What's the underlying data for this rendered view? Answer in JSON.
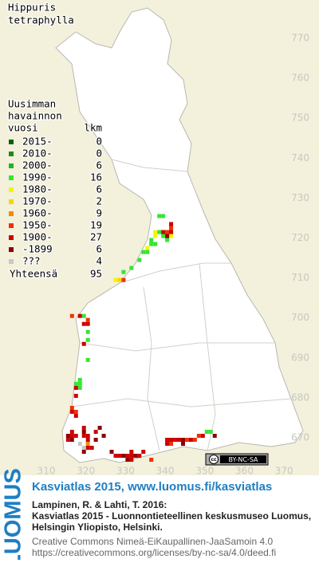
{
  "title": [
    "Hippuris",
    "tetraphylla"
  ],
  "legend": {
    "heading": [
      "Uusimman",
      "havainnon"
    ],
    "year_header": "vuosi",
    "count_header": "lkm",
    "entries": [
      {
        "label": "2015-",
        "count": 0,
        "color": "#006400",
        "squares": []
      },
      {
        "label": "2010-",
        "count": 0,
        "color": "#1a8c1a",
        "squares": []
      },
      {
        "label": "2000-",
        "count": 6,
        "color": "#22b522",
        "squares": []
      },
      {
        "label": "1990-",
        "count": 16,
        "color": "#33e633",
        "squares": [
          [
            338,
            725
          ],
          [
            339,
            725
          ],
          [
            338,
            721
          ],
          [
            339,
            720
          ],
          [
            336,
            719
          ],
          [
            340,
            719
          ],
          [
            336,
            718
          ],
          [
            337,
            718
          ],
          [
            334,
            716
          ],
          [
            335,
            716
          ],
          [
            333,
            714
          ],
          [
            331,
            712
          ],
          [
            329,
            711
          ],
          [
            319,
            700
          ],
          [
            320,
            696
          ],
          [
            320,
            694
          ],
          [
            320,
            689
          ],
          [
            318,
            684
          ],
          [
            317,
            683
          ],
          [
            318,
            683
          ],
          [
            318,
            682
          ],
          [
            350,
            671
          ],
          [
            351,
            671
          ]
        ]
      },
      {
        "label": "1980-",
        "count": 6,
        "color": "#f5f500",
        "squares": [
          [
            337,
            721
          ],
          [
            337,
            720
          ],
          [
            341,
            720
          ],
          [
            335,
            717
          ],
          [
            327,
            709
          ]
        ]
      },
      {
        "label": "1970-",
        "count": 2,
        "color": "#f5d800",
        "squares": [
          [
            328,
            709
          ]
        ]
      },
      {
        "label": "1960-",
        "count": 9,
        "color": "#f58a00",
        "squares": [
          [
            320,
            668
          ]
        ]
      },
      {
        "label": "1950-",
        "count": 19,
        "color": "#f03000",
        "squares": [
          [
            341,
            722
          ],
          [
            340,
            721
          ],
          [
            329,
            709
          ],
          [
            316,
            700
          ],
          [
            320,
            699
          ],
          [
            316,
            677
          ],
          [
            317,
            676
          ],
          [
            336,
            664
          ],
          [
            348,
            670
          ],
          [
            345,
            669
          ],
          [
            347,
            669
          ],
          [
            341,
            668
          ]
        ]
      },
      {
        "label": "1900-",
        "count": 27,
        "color": "#cc0000",
        "squares": [
          [
            341,
            723
          ],
          [
            339,
            721
          ],
          [
            341,
            721
          ],
          [
            318,
            700
          ],
          [
            319,
            698
          ],
          [
            320,
            698
          ],
          [
            319,
            693
          ],
          [
            317,
            682
          ],
          [
            317,
            680
          ],
          [
            316,
            676
          ],
          [
            317,
            675
          ],
          [
            319,
            672
          ],
          [
            316,
            671
          ],
          [
            322,
            671
          ],
          [
            316,
            670
          ],
          [
            317,
            670
          ],
          [
            319,
            670
          ],
          [
            320,
            670
          ],
          [
            315,
            669
          ],
          [
            320,
            669
          ],
          [
            320,
            667
          ],
          [
            321,
            667
          ],
          [
            331,
            666
          ],
          [
            334,
            666
          ],
          [
            327,
            665
          ],
          [
            328,
            665
          ],
          [
            330,
            665
          ],
          [
            331,
            665
          ],
          [
            333,
            665
          ],
          [
            331,
            664
          ],
          [
            349,
            670
          ],
          [
            340,
            669
          ],
          [
            341,
            669
          ],
          [
            342,
            669
          ],
          [
            343,
            669
          ],
          [
            346,
            669
          ],
          [
            340,
            668
          ]
        ]
      },
      {
        "label": "-1899",
        "count": 6,
        "color": "#8c0000",
        "squares": [
          [
            340,
            720
          ],
          [
            323,
            672
          ],
          [
            319,
            671
          ],
          [
            315,
            670
          ],
          [
            324,
            670
          ],
          [
            316,
            669
          ],
          [
            322,
            669
          ],
          [
            319,
            666
          ],
          [
            326,
            666
          ],
          [
            329,
            665
          ],
          [
            332,
            665
          ],
          [
            330,
            664
          ],
          [
            352,
            670
          ],
          [
            344,
            669
          ],
          [
            344,
            668
          ]
        ]
      },
      {
        "label": "???",
        "count": 4,
        "color": "#c8c8c8",
        "squares": [
          [
            318,
            668
          ],
          [
            319,
            667
          ]
        ]
      }
    ],
    "total_label": "Yhteensä",
    "total": 95
  },
  "axes": {
    "yticks": [
      770,
      760,
      750,
      740,
      730,
      720,
      710,
      700,
      690,
      680,
      670
    ],
    "xticks": [
      310,
      320,
      330,
      340,
      350,
      360,
      370
    ]
  },
  "license_badge": "BY-NC-SA",
  "footer": {
    "logo": "LUOMUS",
    "link": "Kasviatlas 2015, www.luomus.fi/kasviatlas",
    "citation": [
      "Lampinen, R. & Lahti, T. 2016:",
      "Kasviatlas 2015 - Luonnontieteellinen keskusmuseo Luomus,",
      "Helsingin Yliopisto, Helsinki."
    ],
    "license": [
      "Creative Commons Nimeä-EiKaupallinen-JaaSamoin 4.0",
      "https://creativecommons.org/licenses/by-nc-sa/4.0/deed.fi"
    ]
  }
}
